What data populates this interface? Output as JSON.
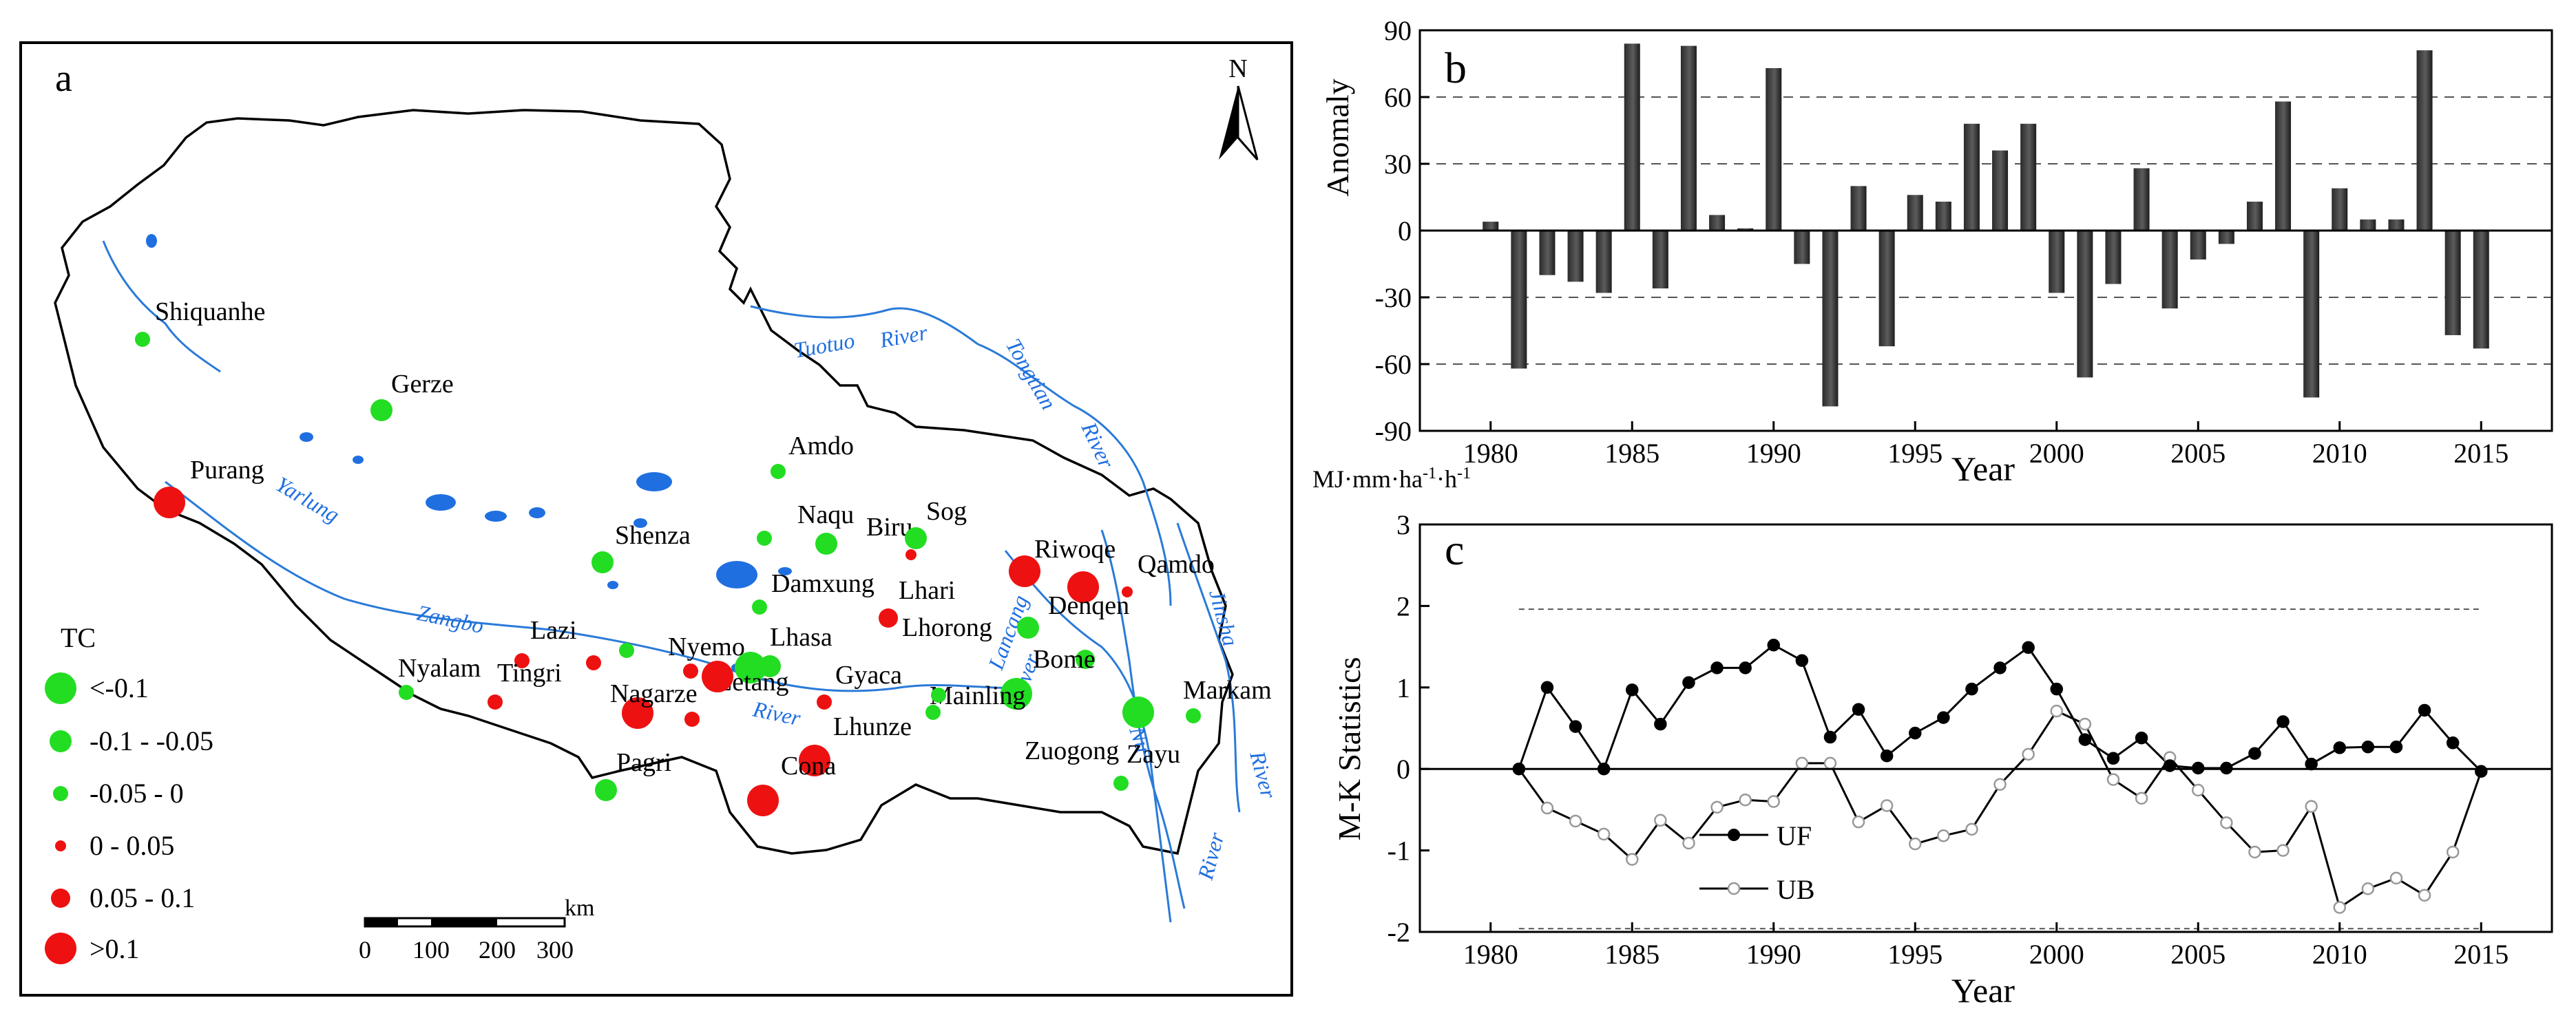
{
  "panels": {
    "a": {
      "label": "a",
      "north_label": "N",
      "scale_unit": "km",
      "scale_ticks": [
        "0",
        "100",
        "200",
        "300"
      ],
      "legend": {
        "title": "TC",
        "classes": [
          {
            "label": "<-0.1",
            "color": "#22dd22"
          },
          {
            "label": "-0.1 - -0.05",
            "color": "#22dd22"
          },
          {
            "label": "-0.05 - 0",
            "color": "#22dd22"
          },
          {
            "label": "0 - 0.05",
            "color": "#ee1111"
          },
          {
            "label": "0.05 - 0.1",
            "color": "#ee1111"
          },
          {
            "label": ">0.1",
            "color": "#ee1111"
          }
        ]
      },
      "rivers": [
        "Yarlung",
        "Zangbo",
        "River",
        "Tuotuo",
        "River",
        "Tongtian",
        "River",
        "Lancang",
        "River",
        "Jinsha",
        "River",
        "Nu",
        "River"
      ],
      "stations": [
        {
          "name": "Shiquanhe",
          "tc_class": 2
        },
        {
          "name": "Gerze",
          "tc_class": 1
        },
        {
          "name": "Purang",
          "tc_class": 5
        },
        {
          "name": "Amdo",
          "tc_class": 2
        },
        {
          "name": "Naqu",
          "tc_class": 1
        },
        {
          "name": "Biru",
          "tc_class": 3
        },
        {
          "name": "Sog",
          "tc_class": 1
        },
        {
          "name": "Shenza",
          "tc_class": 1
        },
        {
          "name": "Damxung",
          "tc_class": 2
        },
        {
          "name": "Lhari",
          "tc_class": 4
        },
        {
          "name": "Riwoqe",
          "tc_class": 5
        },
        {
          "name": "Denqen",
          "tc_class": 5
        },
        {
          "name": "Qamdo",
          "tc_class": 3
        },
        {
          "name": "Lhorong",
          "tc_class": 1
        },
        {
          "name": "Lazi",
          "tc_class": 4
        },
        {
          "name": "Lhasa",
          "tc_class": 1
        },
        {
          "name": "Nyalam",
          "tc_class": 2
        },
        {
          "name": "Tingri",
          "tc_class": 3
        },
        {
          "name": "Nyemo",
          "tc_class": 3
        },
        {
          "name": "Zetang",
          "tc_class": 0
        },
        {
          "name": "Nagarze",
          "tc_class": 5
        },
        {
          "name": "Gyaca",
          "tc_class": 3
        },
        {
          "name": "Bome",
          "tc_class": 1
        },
        {
          "name": "Mainling",
          "tc_class": 0
        },
        {
          "name": "Lhunze",
          "tc_class": 2
        },
        {
          "name": "Markam",
          "tc_class": 2
        },
        {
          "name": "Pagri",
          "tc_class": 1
        },
        {
          "name": "Cona",
          "tc_class": 5
        },
        {
          "name": "Zuogong",
          "tc_class": 2
        },
        {
          "name": "Zayu",
          "tc_class": 0
        }
      ]
    },
    "b": {
      "label": "b"
    },
    "c": {
      "label": "c"
    }
  },
  "chart_data": [
    {
      "panel": "b",
      "type": "bar",
      "title": "",
      "xlabel": "Year",
      "ylabel": "Anomaly",
      "unit_label": "MJ·mm·ha-1·h-1",
      "xlim": [
        1977.5,
        2017.5
      ],
      "ylim": [
        -90,
        90
      ],
      "xticks": [
        1980,
        1985,
        1990,
        1995,
        2000,
        2005,
        2010,
        2015
      ],
      "yticks": [
        90,
        60,
        30,
        0,
        -30,
        -60,
        -90
      ],
      "gridlines": [
        60,
        30,
        -30,
        -60
      ],
      "x": [
        1980,
        1981,
        1982,
        1983,
        1984,
        1985,
        1986,
        1987,
        1988,
        1989,
        1990,
        1991,
        1992,
        1993,
        1994,
        1995,
        1996,
        1997,
        1998,
        1999,
        2000,
        2001,
        2002,
        2003,
        2004,
        2005,
        2006,
        2007,
        2008,
        2009,
        2010,
        2011,
        2012,
        2013,
        2014,
        2015
      ],
      "values": [
        4,
        -62,
        -20,
        -23,
        -28,
        84,
        -26,
        83,
        7,
        1,
        73,
        -15,
        -79,
        20,
        -52,
        16,
        13,
        48,
        36,
        48,
        -28,
        -66,
        -24,
        28,
        -35,
        -13,
        -6,
        13,
        58,
        -75,
        19,
        5,
        5,
        81,
        -47,
        -53
      ]
    },
    {
      "panel": "c",
      "type": "line",
      "title": "",
      "xlabel": "Year",
      "ylabel": "M-K Statistics",
      "xlim": [
        1977.5,
        2017.5
      ],
      "ylim": [
        -2,
        3
      ],
      "xticks": [
        1980,
        1985,
        1990,
        1995,
        2000,
        2005,
        2010,
        2015
      ],
      "yticks": [
        3,
        2,
        1,
        0,
        -1,
        -2
      ],
      "confidence_lines": [
        1.96,
        -1.96
      ],
      "x": [
        1981,
        1982,
        1983,
        1984,
        1985,
        1986,
        1987,
        1988,
        1989,
        1990,
        1991,
        1992,
        1993,
        1994,
        1995,
        1996,
        1997,
        1998,
        1999,
        2000,
        2001,
        2002,
        2003,
        2004,
        2005,
        2006,
        2007,
        2008,
        2009,
        2010,
        2011,
        2012,
        2013,
        2014,
        2015
      ],
      "series": [
        {
          "name": "UF",
          "marker": "filled",
          "values": [
            0,
            1,
            0.52,
            0,
            0.97,
            0.55,
            1.06,
            1.24,
            1.24,
            1.52,
            1.33,
            0.39,
            0.73,
            0.16,
            0.44,
            0.63,
            0.98,
            1.24,
            1.49,
            0.98,
            0.36,
            0.13,
            0.38,
            0.04,
            0.01,
            0.01,
            0.19,
            0.58,
            0.06,
            0.26,
            0.27,
            0.27,
            0.72,
            0.32,
            -0.03
          ]
        },
        {
          "name": "UB",
          "marker": "open",
          "values": [
            0,
            -0.48,
            -0.64,
            -0.8,
            -1.11,
            -0.63,
            -0.91,
            -0.47,
            -0.38,
            -0.4,
            0.07,
            0.07,
            -0.65,
            -0.45,
            -0.92,
            -0.82,
            -0.74,
            -0.19,
            0.18,
            0.71,
            0.55,
            -0.13,
            -0.36,
            0.14,
            -0.26,
            -0.66,
            -1.02,
            -1,
            -0.46,
            -1.7,
            -1.47,
            -1.34,
            -1.55,
            -1.02,
            -0.03
          ]
        }
      ]
    }
  ]
}
